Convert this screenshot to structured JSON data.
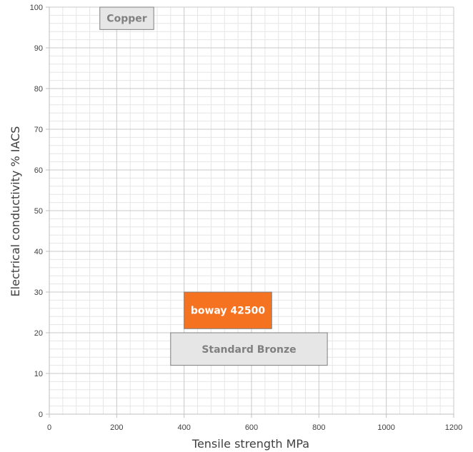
{
  "chart_data": {
    "type": "box-range",
    "title": "",
    "xlabel": "Tensile strength MPa",
    "ylabel": "Electrical conductivity % IACS",
    "xlim": [
      0,
      1200
    ],
    "ylim": [
      0,
      100
    ],
    "xticks": [
      "0",
      "200",
      "400",
      "600",
      "800",
      "1000",
      "1200"
    ],
    "yticks": [
      "0",
      "10",
      "20",
      "30",
      "40",
      "50",
      "60",
      "70",
      "80",
      "90",
      "100"
    ],
    "grid": true,
    "regions": [
      {
        "name": "Copper",
        "x_range": [
          150,
          310
        ],
        "y_range": [
          94.5,
          100
        ],
        "color": "#e6e6e6",
        "text_color": "#808080"
      },
      {
        "name": "boway 42500",
        "x_range": [
          400,
          660
        ],
        "y_range": [
          21,
          30
        ],
        "color": "#f47220",
        "text_color": "#ffffff"
      },
      {
        "name": "Standard Bronze",
        "x_range": [
          360,
          825
        ],
        "y_range": [
          12,
          20
        ],
        "color": "#e6e6e6",
        "text_color": "#808080"
      }
    ],
    "colors": {
      "grid_major": "#c8c8c8",
      "grid_minor": "#e6e6e6",
      "axis": "#bfbfbf"
    }
  }
}
